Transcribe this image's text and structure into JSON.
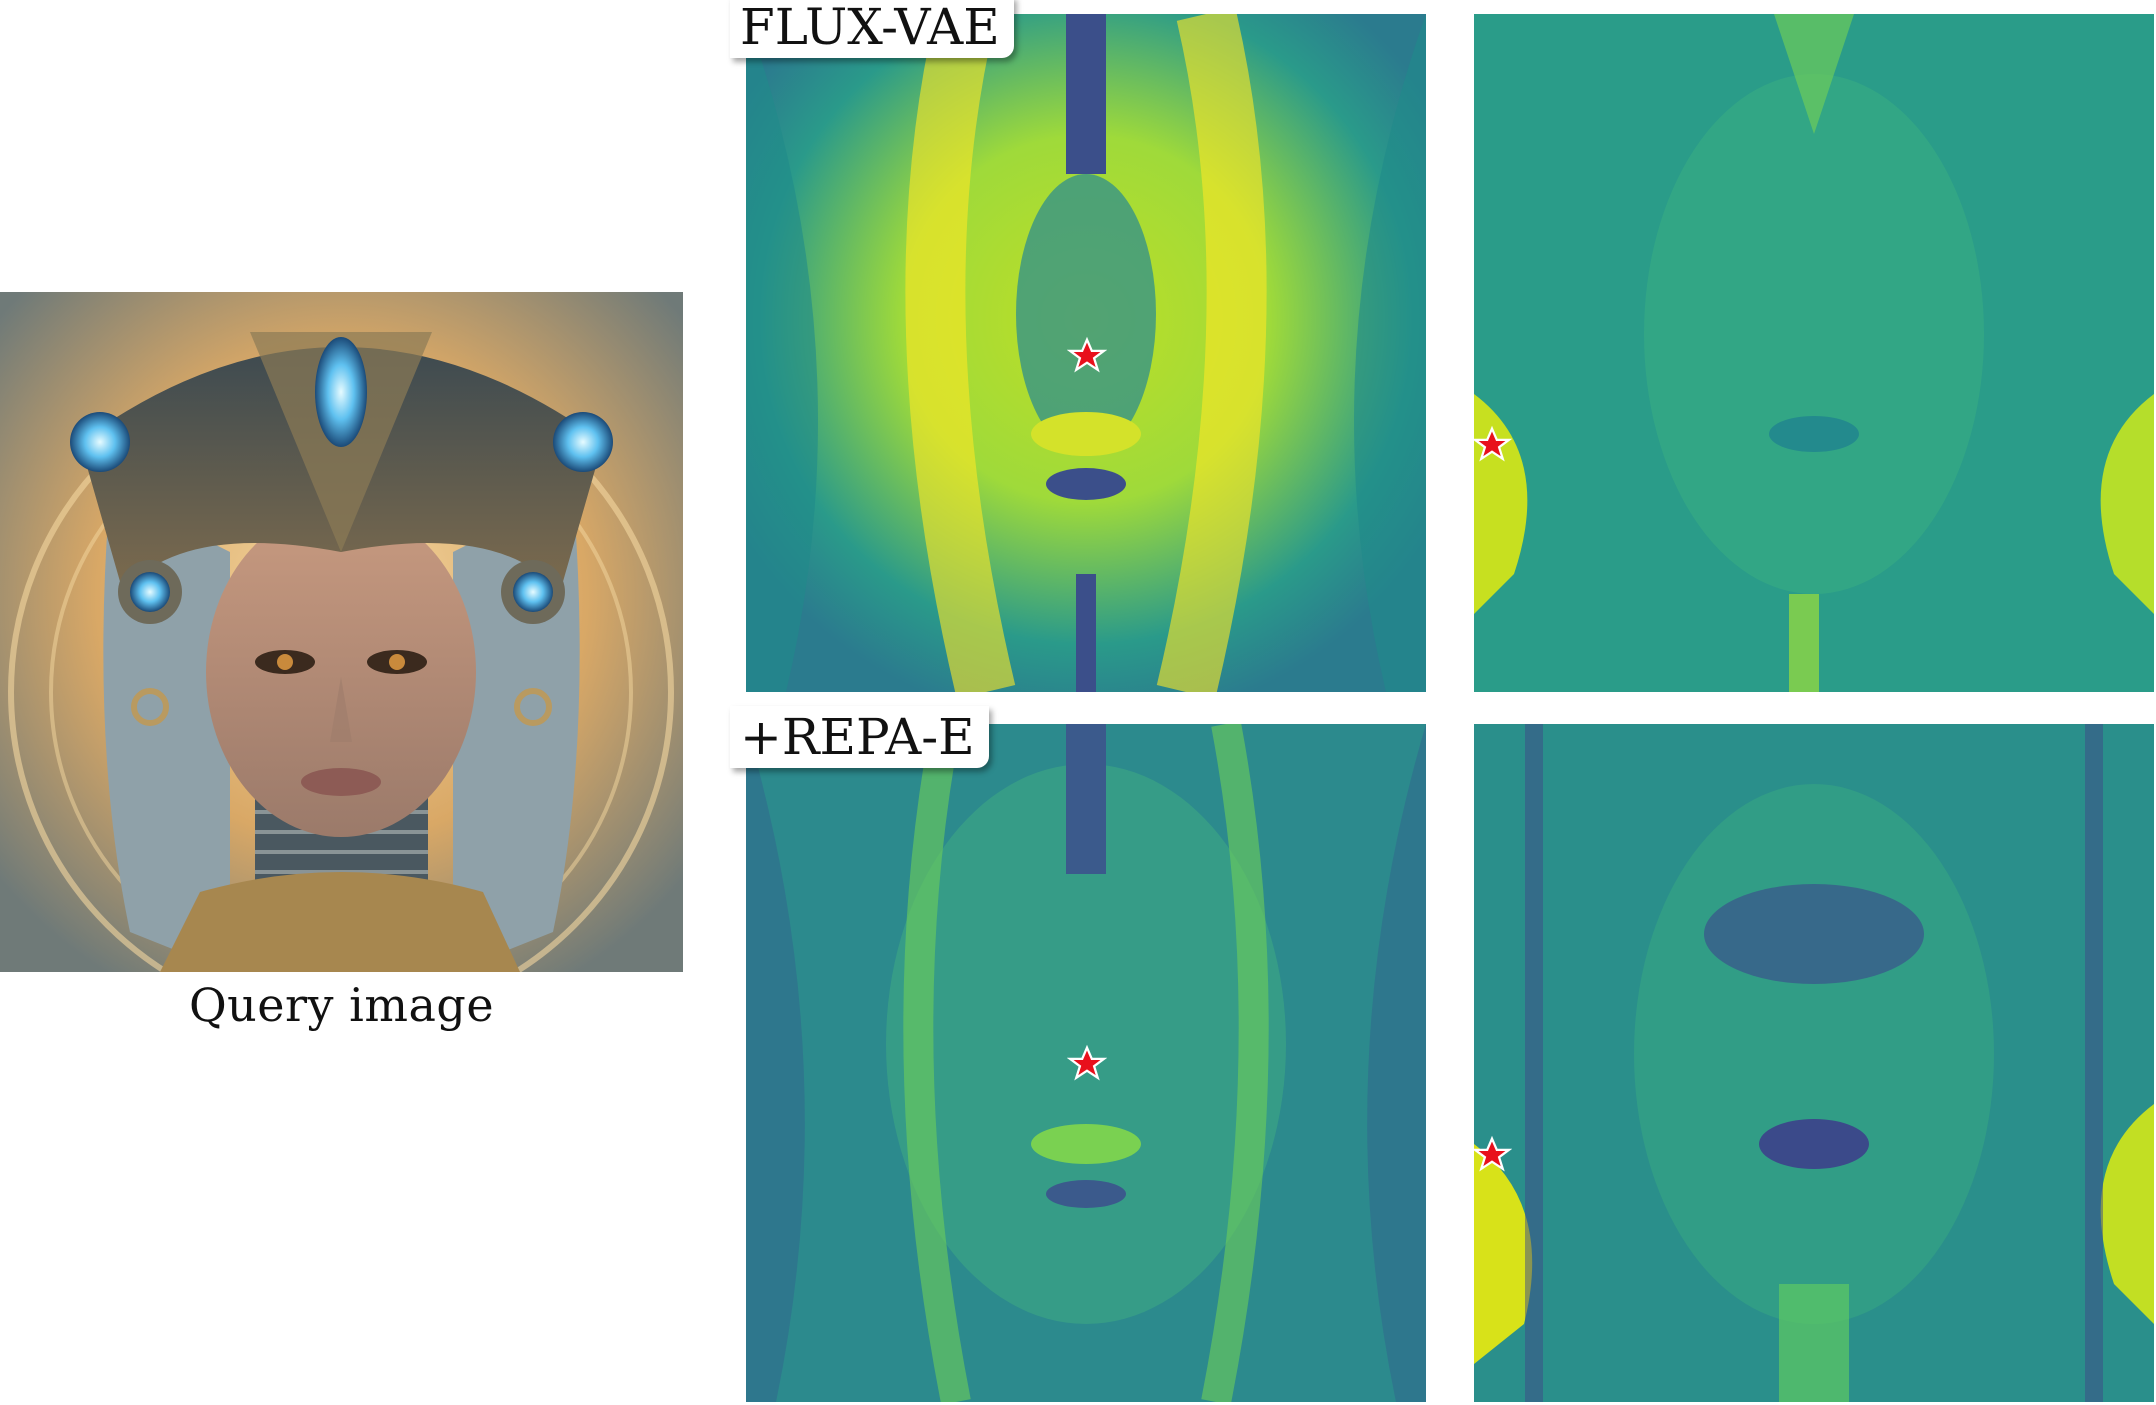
{
  "query": {
    "caption": "Query image"
  },
  "rows": [
    {
      "label": "FLUX-VAE"
    },
    {
      "label": "+REPA-E"
    }
  ],
  "colors": {
    "viridis_low": "#440154",
    "viridis_mid": "#21918c",
    "viridis_high": "#fde725",
    "query_marker": "#e8101c",
    "marker_outline": "#ffffff"
  }
}
